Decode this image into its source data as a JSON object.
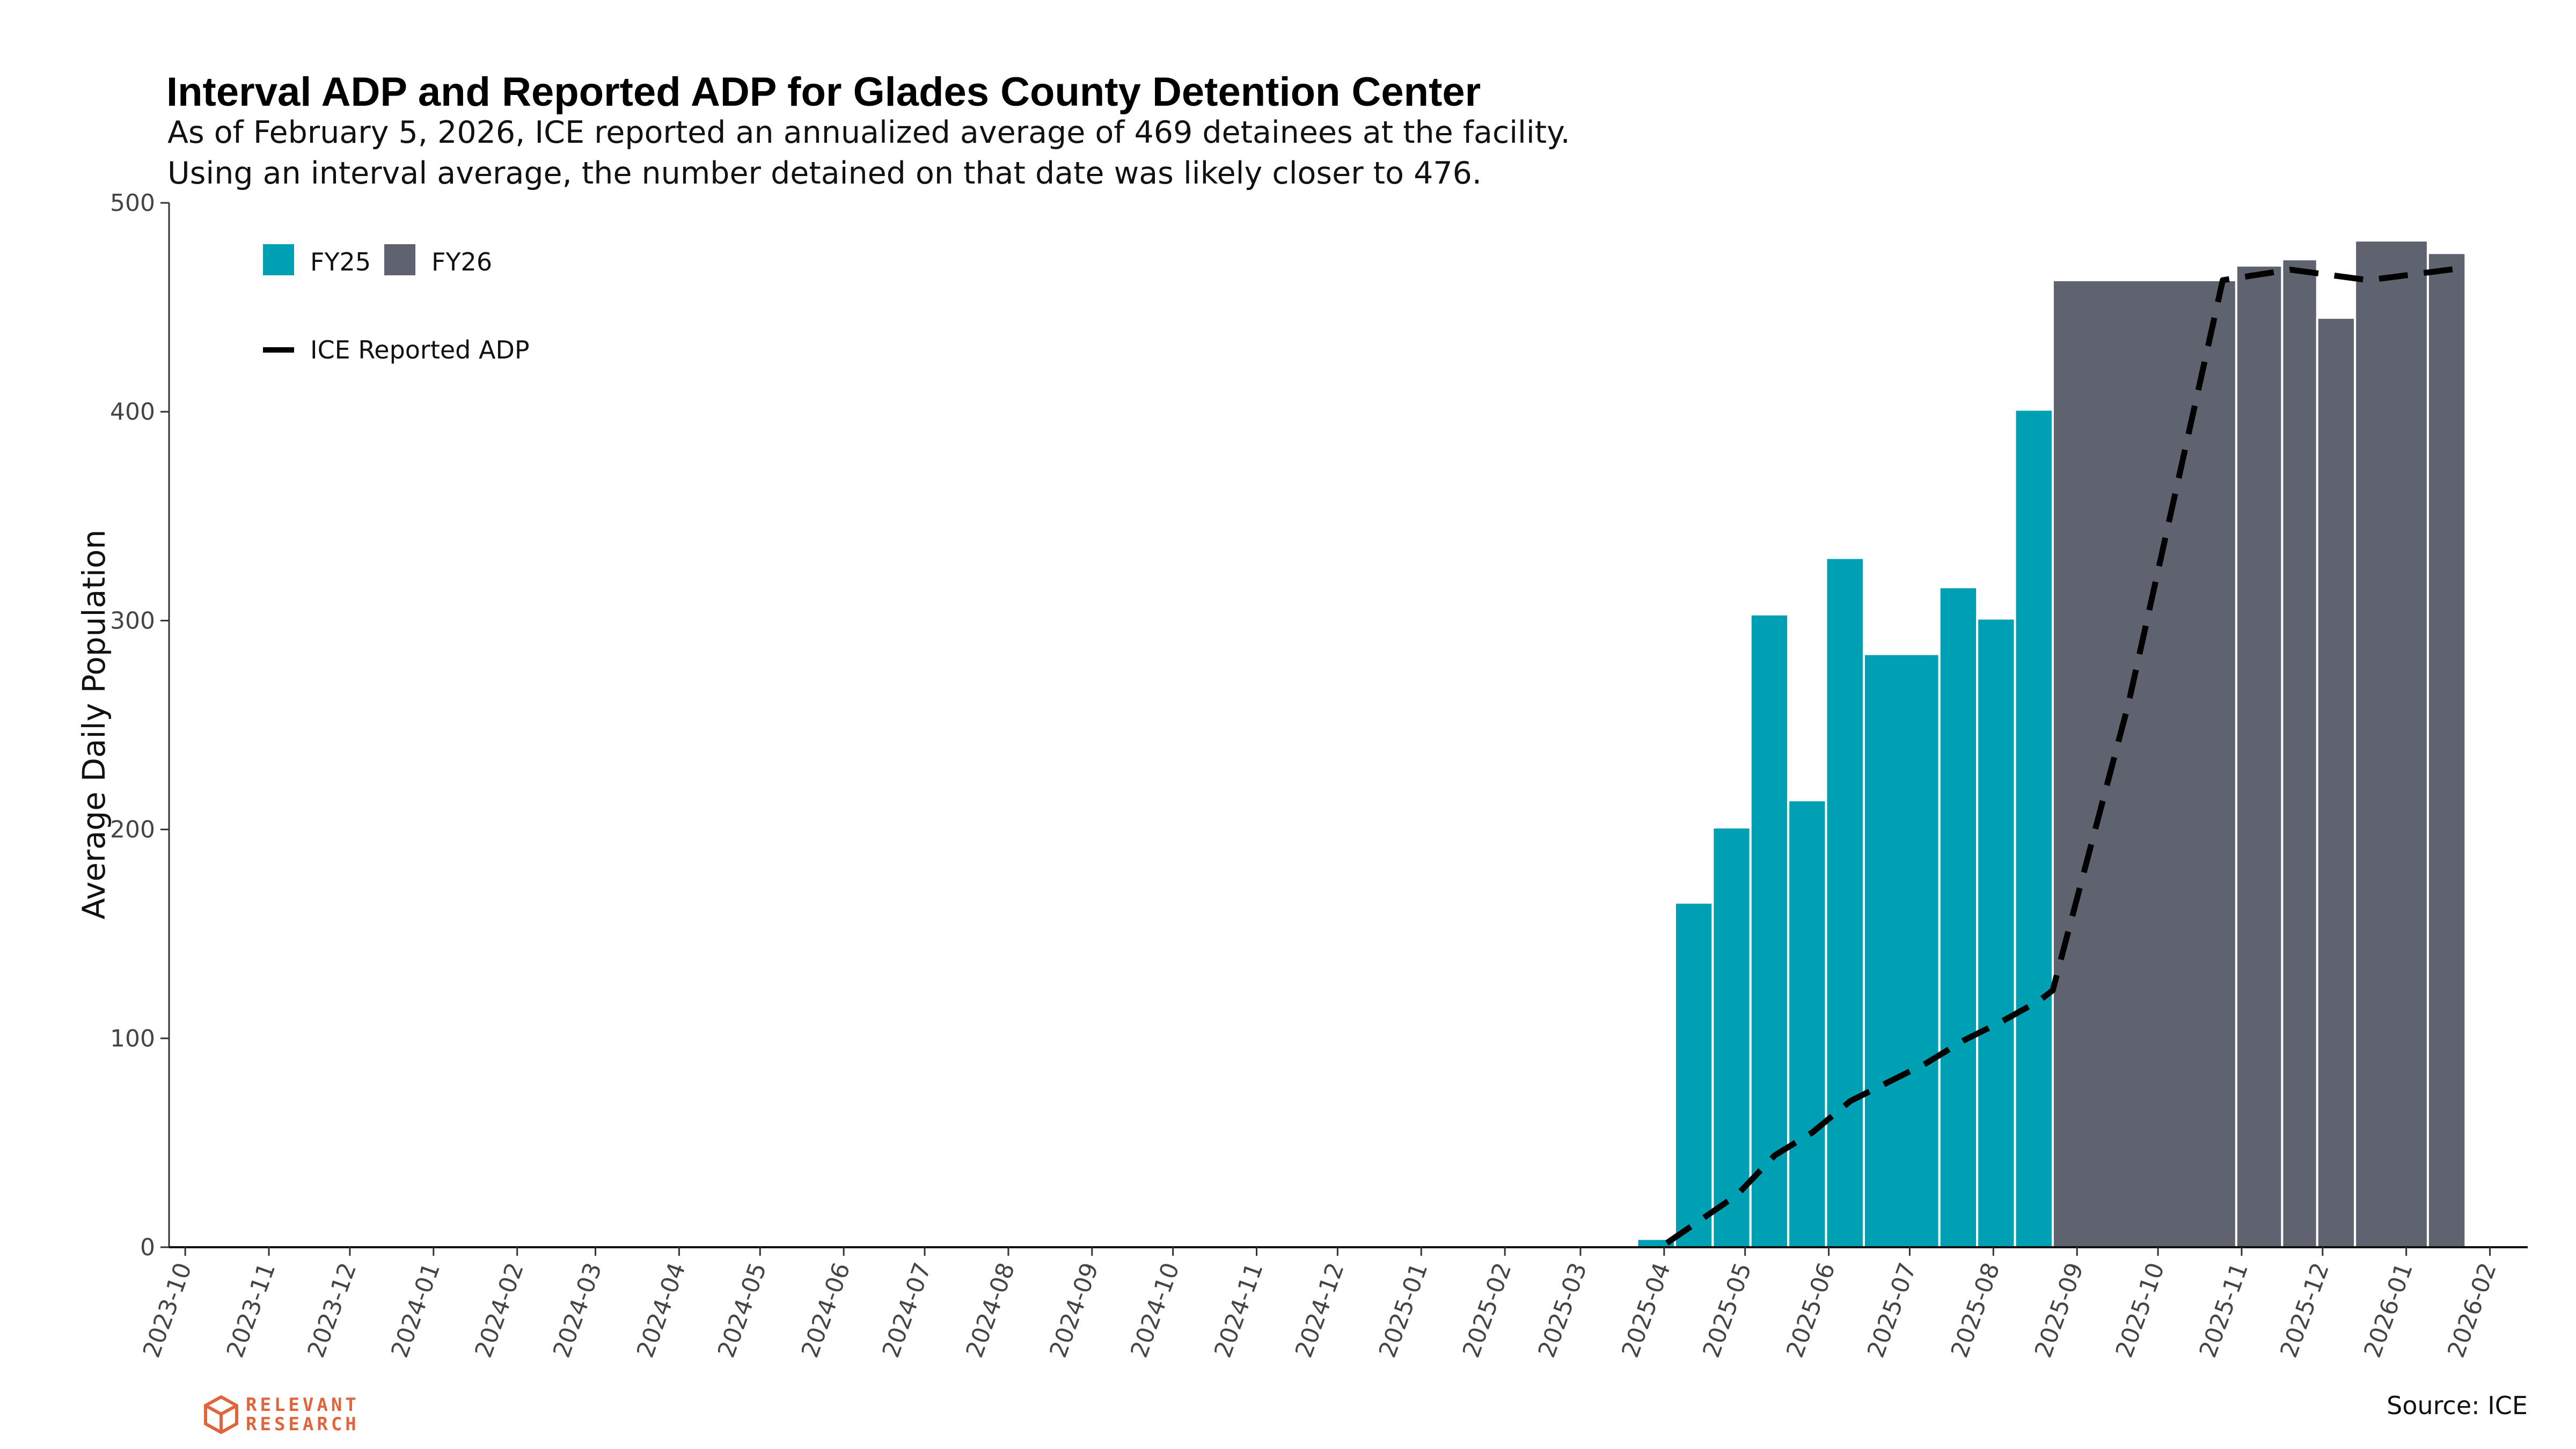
{
  "chart_data": {
    "type": "bar",
    "title": "Interval ADP and Reported ADP for Glades County Detention Center",
    "subtitle_lines": [
      "As of February 5, 2026, ICE reported an annualized average of 469 detainees at the facility.",
      "Using an interval average, the number detained on that date was likely closer to 476."
    ],
    "xlabel": "",
    "ylabel": "Average Daily Population",
    "ylim": [
      0,
      500
    ],
    "yticks": [
      0,
      100,
      200,
      300,
      400,
      500
    ],
    "x_range": [
      "2023-09-25",
      "2026-02-15"
    ],
    "x_tick_labels": [
      "2023-10",
      "2023-11",
      "2023-12",
      "2024-01",
      "2024-02",
      "2024-03",
      "2024-04",
      "2024-05",
      "2024-06",
      "2024-07",
      "2024-08",
      "2024-09",
      "2024-10",
      "2024-11",
      "2024-12",
      "2025-01",
      "2025-02",
      "2025-03",
      "2025-04",
      "2025-05",
      "2025-06",
      "2025-07",
      "2025-08",
      "2025-09",
      "2025-10",
      "2025-11",
      "2025-12",
      "2026-01",
      "2026-02"
    ],
    "legend_location": "top-left",
    "series": [
      {
        "name": "FY25",
        "color": "#00a0b4",
        "bars": [
          {
            "start": "2025-03-22",
            "end": "2025-04-05",
            "value": 4
          },
          {
            "start": "2025-04-05",
            "end": "2025-04-19",
            "value": 165
          },
          {
            "start": "2025-04-19",
            "end": "2025-05-03",
            "value": 201
          },
          {
            "start": "2025-05-03",
            "end": "2025-05-17",
            "value": 303
          },
          {
            "start": "2025-05-17",
            "end": "2025-05-31",
            "value": 214
          },
          {
            "start": "2025-05-31",
            "end": "2025-06-14",
            "value": 330
          },
          {
            "start": "2025-06-14",
            "end": "2025-07-12",
            "value": 284
          },
          {
            "start": "2025-07-12",
            "end": "2025-07-26",
            "value": 316
          },
          {
            "start": "2025-07-26",
            "end": "2025-08-09",
            "value": 301
          },
          {
            "start": "2025-08-09",
            "end": "2025-08-23",
            "value": 401
          }
        ]
      },
      {
        "name": "FY26",
        "color": "#5f6370",
        "bars": [
          {
            "start": "2025-08-23",
            "end": "2025-10-30",
            "value": 463
          },
          {
            "start": "2025-10-30",
            "end": "2025-11-16",
            "value": 470
          },
          {
            "start": "2025-11-16",
            "end": "2025-11-29",
            "value": 473
          },
          {
            "start": "2025-11-29",
            "end": "2025-12-13",
            "value": 445
          },
          {
            "start": "2025-12-13",
            "end": "2026-01-09",
            "value": 482
          },
          {
            "start": "2026-01-09",
            "end": "2026-01-23",
            "value": 476
          }
        ]
      },
      {
        "name": "ICE Reported ADP",
        "type": "line",
        "style": "dashed",
        "color": "#000000",
        "points": [
          {
            "x": "2025-04-02",
            "y": 2
          },
          {
            "x": "2025-04-28",
            "y": 25
          },
          {
            "x": "2025-05-12",
            "y": 44
          },
          {
            "x": "2025-05-26",
            "y": 55
          },
          {
            "x": "2025-06-09",
            "y": 70
          },
          {
            "x": "2025-07-07",
            "y": 88
          },
          {
            "x": "2025-07-21",
            "y": 99
          },
          {
            "x": "2025-08-04",
            "y": 108
          },
          {
            "x": "2025-08-18",
            "y": 118
          },
          {
            "x": "2025-08-23",
            "y": 123
          },
          {
            "x": "2025-09-20",
            "y": 260
          },
          {
            "x": "2025-10-25",
            "y": 463
          },
          {
            "x": "2025-11-19",
            "y": 468
          },
          {
            "x": "2025-12-18",
            "y": 463
          },
          {
            "x": "2026-01-11",
            "y": 467
          },
          {
            "x": "2026-01-23",
            "y": 469
          }
        ]
      }
    ]
  },
  "legend": {
    "fy25": "FY25",
    "fy26": "FY26",
    "line": "ICE Reported ADP"
  },
  "source": "Source: ICE",
  "brand": {
    "line1": "RELEVANT",
    "line2": "RESEARCH",
    "color": "#e0643c",
    "icon": "hexagon-cube-icon"
  }
}
